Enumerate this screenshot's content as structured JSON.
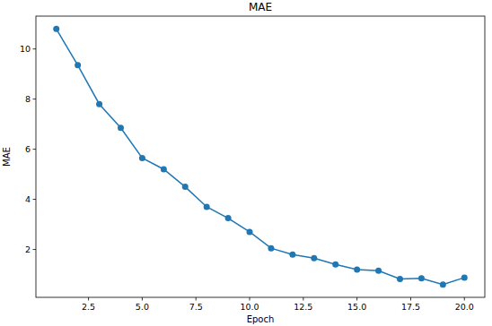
{
  "chart_data": {
    "type": "line",
    "title": "MAE",
    "x_label": "Epoch",
    "y_label": "MAE",
    "x": [
      1,
      2,
      3,
      4,
      5,
      6,
      7,
      8,
      9,
      10,
      11,
      12,
      13,
      14,
      15,
      16,
      17,
      18,
      19,
      20
    ],
    "series": [
      {
        "name": "MAE",
        "color": "#1f77b4",
        "marker": "circle",
        "line_style": "solid",
        "values": [
          10.8,
          9.35,
          7.8,
          6.85,
          5.65,
          5.2,
          4.5,
          3.7,
          3.25,
          2.7,
          2.05,
          1.8,
          1.65,
          1.4,
          1.2,
          1.15,
          0.82,
          0.85,
          0.6,
          0.88
        ]
      }
    ],
    "xlim": [
      0.05,
      20.95
    ],
    "xticks": [
      2.5,
      {
        "value": 5,
        "label": "5.0"
      },
      7.5,
      {
        "value": 10,
        "label": "10.0"
      },
      12.5,
      {
        "value": 15,
        "label": "15.0"
      },
      17.5,
      {
        "value": 20,
        "label": "20.0"
      }
    ],
    "ylim": [
      0.09,
      11.31
    ],
    "yticks": [
      2,
      4,
      6,
      8,
      10
    ],
    "grid": false
  }
}
